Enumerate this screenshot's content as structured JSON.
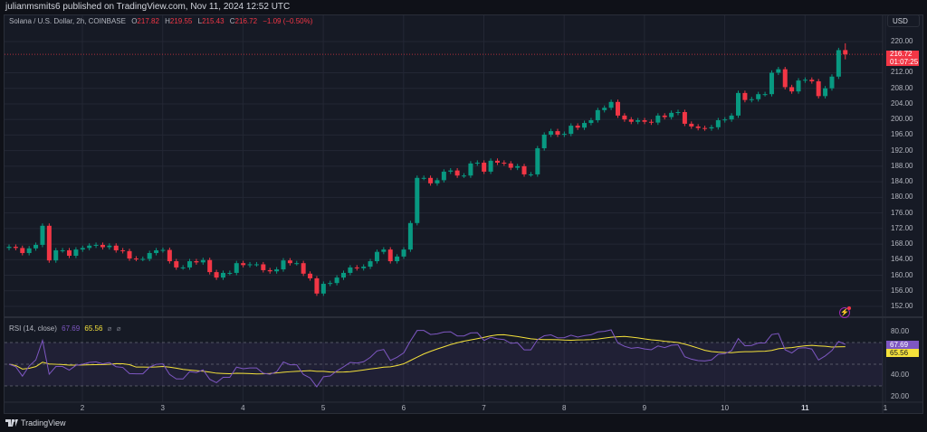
{
  "header": {
    "published": "julianmsmits6 published on TradingView.com, Nov 11, 2024 12:52 UTC"
  },
  "legend": {
    "symbol": "Solana / U.S. Dollar, 2h, COINBASE",
    "o_label": "O",
    "o": "217.82",
    "h_label": "H",
    "h": "219.55",
    "l_label": "L",
    "l": "215.43",
    "c_label": "C",
    "c": "216.72",
    "change": "−1.09 (−0.50%)"
  },
  "currency_button": "USD",
  "current_price": {
    "price": "216.72",
    "countdown": "01:07:25"
  },
  "rsi_legend": {
    "name": "RSI (14, close)",
    "rsi": "67.69",
    "ma": "65.56",
    "extra1": "⌀",
    "extra2": "⌀"
  },
  "footer": {
    "brand": "TradingView"
  },
  "colors": {
    "up": "#089981",
    "down": "#f23645",
    "rsi": "#7e57c2",
    "rsi_ma": "#f5e23b",
    "background": "#161a25",
    "grid": "#232734"
  },
  "chart_data": [
    {
      "type": "candlestick",
      "title": "Solana / U.S. Dollar, 2h, COINBASE",
      "x_ticks": [
        "2",
        "3",
        "4",
        "5",
        "6",
        "7",
        "8",
        "9",
        "10",
        "11",
        "1"
      ],
      "candles_per_day": 12,
      "y_ticks": [
        "220.00",
        "212.00",
        "208.00",
        "204.00",
        "200.00",
        "196.00",
        "192.00",
        "188.00",
        "184.00",
        "180.00",
        "176.00",
        "172.00",
        "168.00",
        "164.00",
        "160.00",
        "156.00",
        "152.00"
      ],
      "ylim": [
        151,
        227
      ],
      "close": [
        167.3,
        167.0,
        165.7,
        166.9,
        167.8,
        172.7,
        163.8,
        166.4,
        166.4,
        165.0,
        166.6,
        167.0,
        167.6,
        167.8,
        167.2,
        167.6,
        166.4,
        166.2,
        164.3,
        164.2,
        164.2,
        165.7,
        166.4,
        166.5,
        163.6,
        162.0,
        162.0,
        163.6,
        163.3,
        163.9,
        160.8,
        159.4,
        160.6,
        160.6,
        163.1,
        162.6,
        162.8,
        162.8,
        161.3,
        161.0,
        161.5,
        163.8,
        163.1,
        163.1,
        160.4,
        159.2,
        155.3,
        157.8,
        158.0,
        159.4,
        160.6,
        162.0,
        161.8,
        162.2,
        163.6,
        166.0,
        166.6,
        163.6,
        164.8,
        166.6,
        173.4,
        185.0,
        185.0,
        183.6,
        184.4,
        186.6,
        186.9,
        185.6,
        185.6,
        188.7,
        188.9,
        186.6,
        189.4,
        188.9,
        188.7,
        187.6,
        188.0,
        185.9,
        185.9,
        192.6,
        196.1,
        197.0,
        196.1,
        196.3,
        198.4,
        197.9,
        199.1,
        199.8,
        202.4,
        203.0,
        204.5,
        201.0,
        200.0,
        199.4,
        199.8,
        199.4,
        199.2,
        201.0,
        200.6,
        201.7,
        201.9,
        198.9,
        198.2,
        197.8,
        197.7,
        198.0,
        199.8,
        200.0,
        201.0,
        206.8,
        205.0,
        205.2,
        206.5,
        206.5,
        212.0,
        212.9,
        208.3,
        207.2,
        210.0,
        210.2,
        209.8,
        206.0,
        208.0,
        211.0,
        217.8,
        216.72
      ],
      "last_candle": {
        "open": 217.82,
        "high": 219.55,
        "low": 215.43,
        "close": 216.72
      }
    },
    {
      "type": "line",
      "title": "RSI (14, close)",
      "y_ticks": [
        "80.00",
        "40.00",
        "20.00"
      ],
      "ylim": [
        14,
        86
      ],
      "bands": {
        "upper": 70,
        "middle": 50,
        "lower": 30
      },
      "series": [
        {
          "name": "RSI",
          "last": 67.69
        },
        {
          "name": "RSI-based MA",
          "last": 65.56
        }
      ]
    }
  ]
}
